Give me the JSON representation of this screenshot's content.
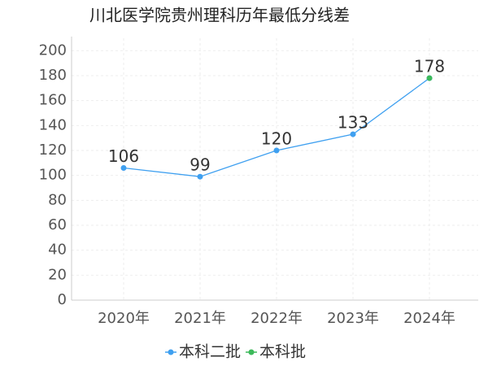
{
  "chart_data": {
    "type": "line",
    "title": "川北医学院贵州理科历年最低分线差",
    "categories": [
      "2020年",
      "2021年",
      "2022年",
      "2023年",
      "2024年"
    ],
    "series": [
      {
        "name": "本科二批",
        "color": "#3fa0f0",
        "values": [
          106,
          99,
          120,
          133,
          178
        ]
      },
      {
        "name": "本科批",
        "color": "#3cb95a",
        "values": [
          null,
          null,
          null,
          null,
          178
        ]
      }
    ],
    "ylim": [
      0,
      210
    ],
    "yticks": [
      0,
      20,
      40,
      60,
      80,
      100,
      120,
      140,
      160,
      180,
      200
    ],
    "grid": true
  }
}
